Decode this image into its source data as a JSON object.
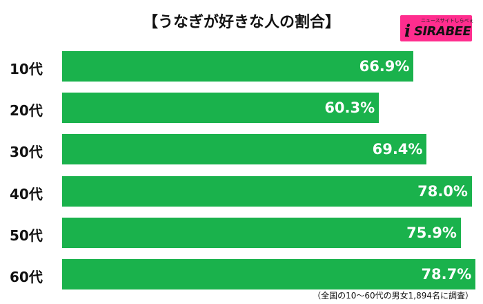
{
  "title": "【うなぎが好きな人の割合】",
  "logo": {
    "main": "SIRABEE",
    "sub": "ニュースサイトしらべぇ",
    "icon_letter": "i",
    "color": "#ff2d8e"
  },
  "footnote": "（全国の10〜60代の男女1,894名に調査）",
  "chart_data": {
    "type": "bar",
    "orientation": "horizontal",
    "title": "【うなぎが好きな人の割合】",
    "categories": [
      "10代",
      "20代",
      "30代",
      "40代",
      "50代",
      "60代"
    ],
    "values": [
      66.9,
      60.3,
      69.4,
      78.0,
      75.9,
      78.7
    ],
    "value_labels": [
      "66.9%",
      "60.3%",
      "69.4%",
      "78.0%",
      "75.9%",
      "78.7%"
    ],
    "unit": "%",
    "bar_color": "#1ab24c",
    "grid": false,
    "legend": "none"
  }
}
